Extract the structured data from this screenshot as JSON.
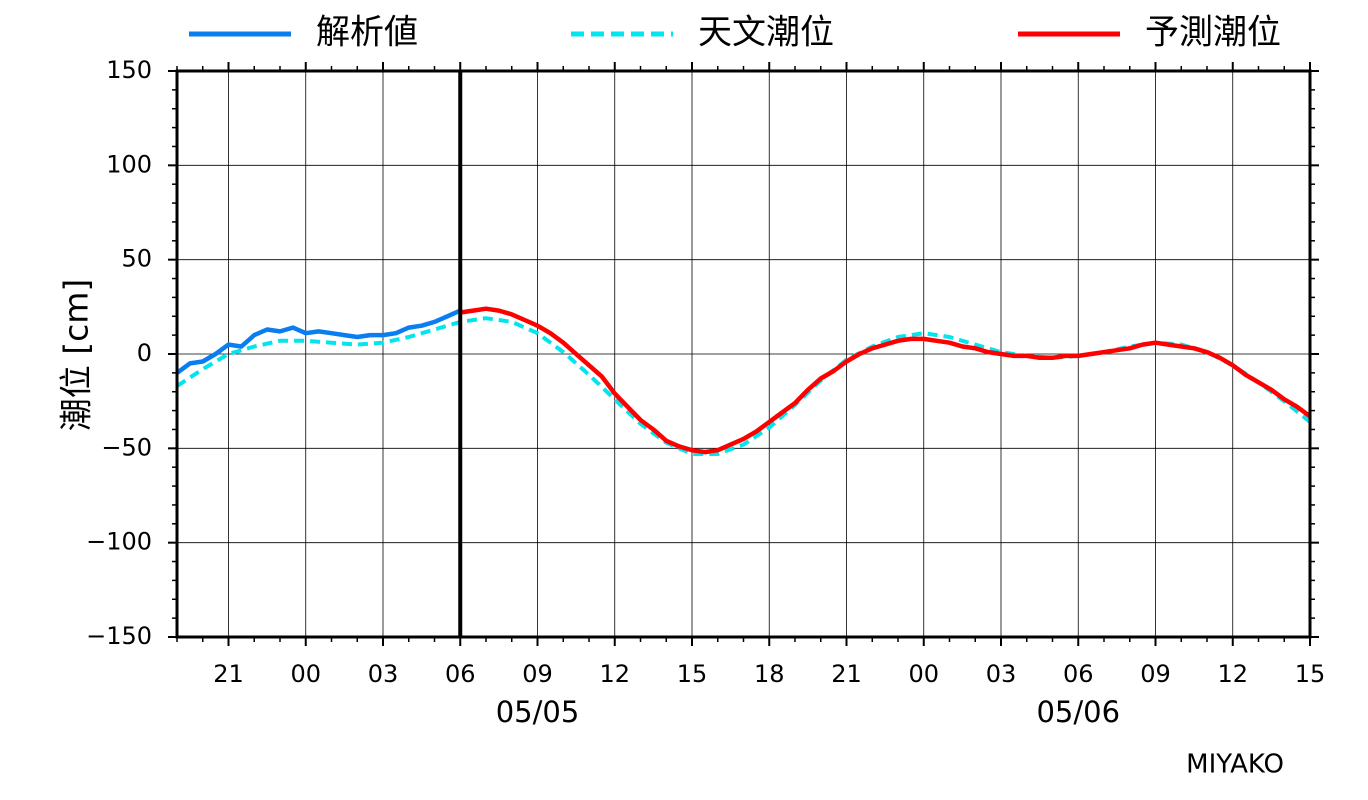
{
  "legend": [
    {
      "label": "解析値",
      "color": "#0a7ef0",
      "style": "solid"
    },
    {
      "label": "天文潮位",
      "color": "#00e5ee",
      "style": "dashed"
    },
    {
      "label": "予測潮位",
      "color": "#ff0000",
      "style": "solid"
    }
  ],
  "station": "MIYAKO",
  "chart_data": {
    "type": "line",
    "ylabel": "潮位 [cm]",
    "x_unit": "hours",
    "xlim": [
      "05/04 19:00",
      "05/06 15:00"
    ],
    "ylim": [
      -150,
      150
    ],
    "yticks": [
      150,
      100,
      50,
      0,
      -50,
      -100,
      -150
    ],
    "ytick_labels": [
      "150",
      "100",
      "50",
      "0",
      "−50",
      "−100",
      "−150"
    ],
    "xticks": [
      "05/04 21:00",
      "05/05 00:00",
      "05/05 03:00",
      "05/05 06:00",
      "05/05 09:00",
      "05/05 12:00",
      "05/05 15:00",
      "05/05 18:00",
      "05/05 21:00",
      "05/06 00:00",
      "05/06 03:00",
      "05/06 06:00",
      "05/06 09:00",
      "05/06 12:00",
      "05/06 15:00"
    ],
    "xtick_labels": [
      "21",
      "00",
      "03",
      "06",
      "09",
      "12",
      "15",
      "18",
      "21",
      "00",
      "03",
      "06",
      "09",
      "12",
      "15"
    ],
    "date_labels": [
      {
        "at": "05/05 09:00",
        "text": "05/05"
      },
      {
        "at": "05/06 06:00",
        "text": "05/06"
      }
    ],
    "current_time": "05/05 06:00",
    "grid": true,
    "legend_position": "top",
    "series": [
      {
        "name": "解析値",
        "color": "#0a7ef0",
        "style": "solid",
        "points": [
          [
            "05/04 19:00",
            -10
          ],
          [
            "05/04 19:30",
            -5
          ],
          [
            "05/04 20:00",
            -4
          ],
          [
            "05/04 20:30",
            0
          ],
          [
            "05/04 21:00",
            5
          ],
          [
            "05/04 21:30",
            4
          ],
          [
            "05/04 22:00",
            10
          ],
          [
            "05/04 22:30",
            13
          ],
          [
            "05/04 23:00",
            12
          ],
          [
            "05/04 23:30",
            14
          ],
          [
            "05/05 00:00",
            11
          ],
          [
            "05/05 00:30",
            12
          ],
          [
            "05/05 01:00",
            11
          ],
          [
            "05/05 01:30",
            10
          ],
          [
            "05/05 02:00",
            9
          ],
          [
            "05/05 02:30",
            10
          ],
          [
            "05/05 03:00",
            10
          ],
          [
            "05/05 03:30",
            11
          ],
          [
            "05/05 04:00",
            14
          ],
          [
            "05/05 04:30",
            15
          ],
          [
            "05/05 05:00",
            17
          ],
          [
            "05/05 05:30",
            20
          ],
          [
            "05/05 06:00",
            23
          ]
        ]
      },
      {
        "name": "天文潮位",
        "color": "#00e5ee",
        "style": "dashed",
        "points": [
          [
            "05/04 19:00",
            -17
          ],
          [
            "05/04 20:00",
            -8
          ],
          [
            "05/04 21:00",
            0
          ],
          [
            "05/04 22:00",
            4
          ],
          [
            "05/04 23:00",
            7
          ],
          [
            "05/05 00:00",
            7
          ],
          [
            "05/05 01:00",
            6
          ],
          [
            "05/05 02:00",
            5
          ],
          [
            "05/05 03:00",
            6
          ],
          [
            "05/05 04:00",
            9
          ],
          [
            "05/05 05:00",
            13
          ],
          [
            "05/05 06:00",
            17
          ],
          [
            "05/05 07:00",
            19
          ],
          [
            "05/05 08:00",
            17
          ],
          [
            "05/05 09:00",
            11
          ],
          [
            "05/05 10:00",
            1
          ],
          [
            "05/05 11:00",
            -11
          ],
          [
            "05/05 12:00",
            -24
          ],
          [
            "05/05 13:00",
            -37
          ],
          [
            "05/05 14:00",
            -47
          ],
          [
            "05/05 15:00",
            -53
          ],
          [
            "05/05 16:00",
            -53
          ],
          [
            "05/05 17:00",
            -48
          ],
          [
            "05/05 18:00",
            -39
          ],
          [
            "05/05 19:00",
            -27
          ],
          [
            "05/05 20:00",
            -14
          ],
          [
            "05/05 21:00",
            -3
          ],
          [
            "05/05 22:00",
            4
          ],
          [
            "05/05 23:00",
            9
          ],
          [
            "05/06 00:00",
            11
          ],
          [
            "05/06 01:00",
            9
          ],
          [
            "05/06 02:00",
            5
          ],
          [
            "05/06 03:00",
            1
          ],
          [
            "05/06 04:00",
            -1
          ],
          [
            "05/06 05:00",
            -2
          ],
          [
            "05/06 06:00",
            -1
          ],
          [
            "05/06 07:00",
            1
          ],
          [
            "05/06 08:00",
            4
          ],
          [
            "05/06 09:00",
            6
          ],
          [
            "05/06 10:00",
            5
          ],
          [
            "05/06 11:00",
            1
          ],
          [
            "05/06 12:00",
            -6
          ],
          [
            "05/06 13:00",
            -15
          ],
          [
            "05/06 14:00",
            -25
          ],
          [
            "05/06 15:00",
            -36
          ]
        ]
      },
      {
        "name": "予測潮位",
        "color": "#ff0000",
        "style": "solid",
        "points": [
          [
            "05/05 06:00",
            22
          ],
          [
            "05/05 06:30",
            23
          ],
          [
            "05/05 07:00",
            24
          ],
          [
            "05/05 07:30",
            23
          ],
          [
            "05/05 08:00",
            21
          ],
          [
            "05/05 08:30",
            18
          ],
          [
            "05/05 09:00",
            15
          ],
          [
            "05/05 09:30",
            11
          ],
          [
            "05/05 10:00",
            6
          ],
          [
            "05/05 10:30",
            0
          ],
          [
            "05/05 11:00",
            -6
          ],
          [
            "05/05 11:30",
            -12
          ],
          [
            "05/05 12:00",
            -21
          ],
          [
            "05/05 12:30",
            -28
          ],
          [
            "05/05 13:00",
            -35
          ],
          [
            "05/05 13:30",
            -40
          ],
          [
            "05/05 14:00",
            -46
          ],
          [
            "05/05 14:30",
            -49
          ],
          [
            "05/05 15:00",
            -51
          ],
          [
            "05/05 15:30",
            -52
          ],
          [
            "05/05 16:00",
            -51
          ],
          [
            "05/05 16:30",
            -48
          ],
          [
            "05/05 17:00",
            -45
          ],
          [
            "05/05 17:30",
            -41
          ],
          [
            "05/05 18:00",
            -36
          ],
          [
            "05/05 18:30",
            -31
          ],
          [
            "05/05 19:00",
            -26
          ],
          [
            "05/05 19:30",
            -19
          ],
          [
            "05/05 20:00",
            -13
          ],
          [
            "05/05 20:30",
            -9
          ],
          [
            "05/05 21:00",
            -4
          ],
          [
            "05/05 21:30",
            0
          ],
          [
            "05/05 22:00",
            3
          ],
          [
            "05/05 22:30",
            5
          ],
          [
            "05/05 23:00",
            7
          ],
          [
            "05/05 23:30",
            8
          ],
          [
            "05/06 00:00",
            8
          ],
          [
            "05/06 00:30",
            7
          ],
          [
            "05/06 01:00",
            6
          ],
          [
            "05/06 01:30",
            4
          ],
          [
            "05/06 02:00",
            3
          ],
          [
            "05/06 02:30",
            1
          ],
          [
            "05/06 03:00",
            0
          ],
          [
            "05/06 03:30",
            -1
          ],
          [
            "05/06 04:00",
            -1
          ],
          [
            "05/06 04:30",
            -2
          ],
          [
            "05/06 05:00",
            -2
          ],
          [
            "05/06 05:30",
            -1
          ],
          [
            "05/06 06:00",
            -1
          ],
          [
            "05/06 06:30",
            0
          ],
          [
            "05/06 07:00",
            1
          ],
          [
            "05/06 07:30",
            2
          ],
          [
            "05/06 08:00",
            3
          ],
          [
            "05/06 08:30",
            5
          ],
          [
            "05/06 09:00",
            6
          ],
          [
            "05/06 09:30",
            5
          ],
          [
            "05/06 10:00",
            4
          ],
          [
            "05/06 10:30",
            3
          ],
          [
            "05/06 11:00",
            1
          ],
          [
            "05/06 11:30",
            -2
          ],
          [
            "05/06 12:00",
            -6
          ],
          [
            "05/06 12:30",
            -11
          ],
          [
            "05/06 13:00",
            -15
          ],
          [
            "05/06 13:30",
            -19
          ],
          [
            "05/06 14:00",
            -24
          ],
          [
            "05/06 14:30",
            -28
          ],
          [
            "05/06 15:00",
            -33
          ]
        ]
      }
    ]
  }
}
